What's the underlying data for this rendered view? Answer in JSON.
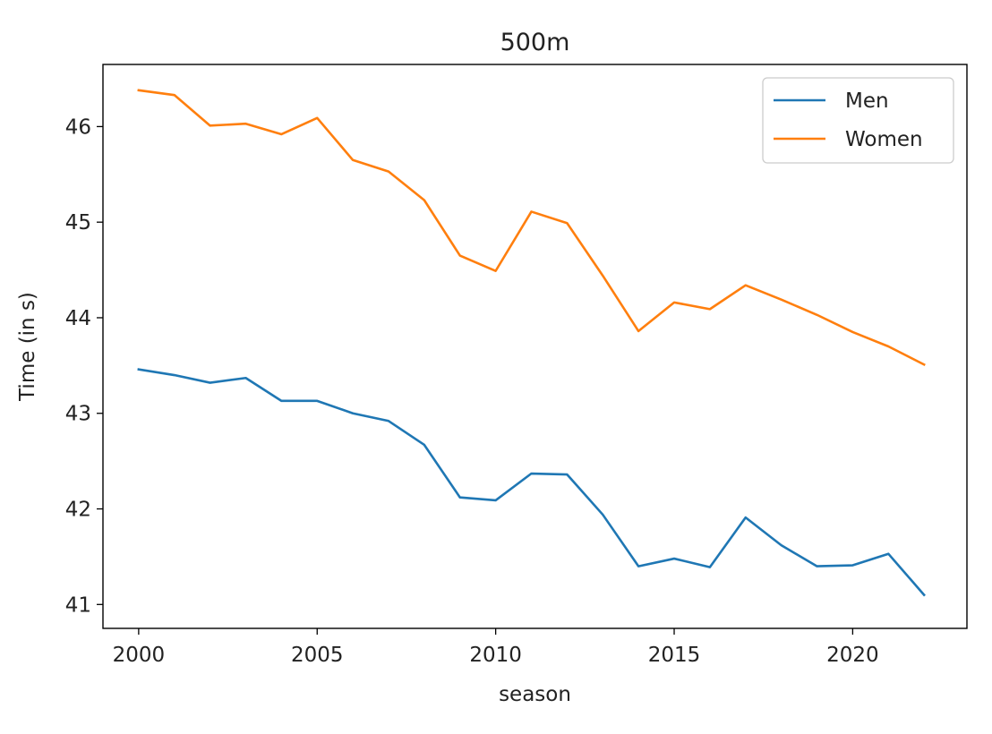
{
  "chart_data": {
    "type": "line",
    "title": "500m",
    "xlabel": "season",
    "ylabel": "Time (in s)",
    "xlim": [
      1999,
      2023.2
    ],
    "ylim": [
      40.75,
      46.65
    ],
    "xticks": [
      2000,
      2005,
      2010,
      2015,
      2020
    ],
    "yticks": [
      41,
      42,
      43,
      44,
      45,
      46
    ],
    "legend_position": "top-right",
    "x": [
      2000,
      2001,
      2002,
      2003,
      2004,
      2005,
      2006,
      2007,
      2008,
      2009,
      2010,
      2011,
      2012,
      2013,
      2014,
      2015,
      2016,
      2017,
      2018,
      2019,
      2020,
      2021,
      2022
    ],
    "series": [
      {
        "name": "Men",
        "color": "#1f77b4",
        "values": [
          43.46,
          43.4,
          43.32,
          43.37,
          43.13,
          43.13,
          43.0,
          42.92,
          42.67,
          42.12,
          42.09,
          42.37,
          42.36,
          41.94,
          41.4,
          41.48,
          41.39,
          41.91,
          41.62,
          41.4,
          41.41,
          41.53,
          41.1
        ]
      },
      {
        "name": "Women",
        "color": "#ff7f0e",
        "values": [
          46.38,
          46.33,
          46.01,
          46.03,
          45.92,
          46.09,
          45.65,
          45.53,
          45.23,
          44.65,
          44.49,
          45.11,
          44.99,
          44.44,
          43.86,
          44.16,
          44.09,
          44.34,
          44.19,
          44.03,
          43.85,
          43.7,
          43.51
        ]
      }
    ]
  }
}
